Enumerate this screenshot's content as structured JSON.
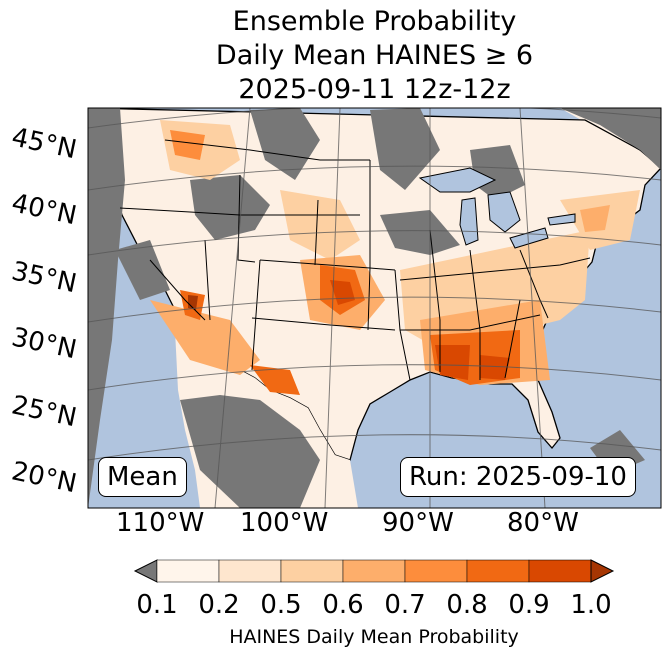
{
  "title": {
    "line1": "Ensemble Probability",
    "line2": "Daily Mean HAINES ≥ 6",
    "line3": "2025-09-11 12z-12z"
  },
  "map": {
    "colors": {
      "ocean": "#b0c4de",
      "land": "#fdf0e4",
      "missing": "#777777",
      "borders": "#000000",
      "grid": "#555555"
    }
  },
  "latitude_labels": [
    "45°N",
    "40°N",
    "35°N",
    "30°N",
    "25°N",
    "20°N"
  ],
  "longitude_labels": [
    "110°W",
    "100°W",
    "90°W",
    "80°W"
  ],
  "mean_label": "Mean",
  "run_label": "Run: 2025-09-10",
  "colorbar": {
    "ticks": [
      "0.1",
      "0.2",
      "0.5",
      "0.6",
      "0.7",
      "0.8",
      "0.9",
      "1.0"
    ],
    "colors": [
      "#fff5eb",
      "#fee6ce",
      "#fdd0a2",
      "#fdae6b",
      "#fd8d3c",
      "#f16913",
      "#d94801",
      "#a63603"
    ],
    "under_color": "#777777",
    "label": "HAINES Daily Mean Probability"
  }
}
